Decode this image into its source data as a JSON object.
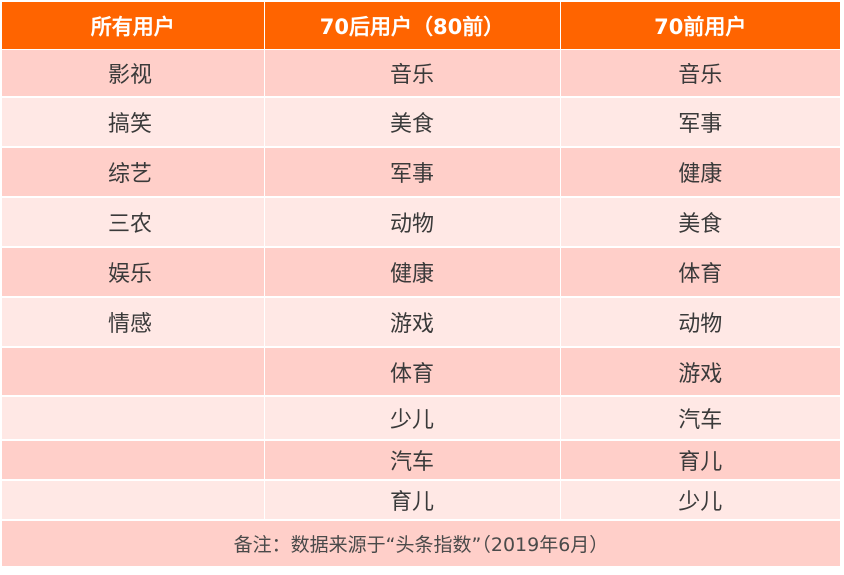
{
  "headers": [
    "所有用户",
    "70后用户（80前）",
    "70前用户"
  ],
  "rows": [
    [
      "影视",
      "音乐",
      "音乐"
    ],
    [
      "搞笑",
      "美食",
      "军事"
    ],
    [
      "综艺",
      "军事",
      "健康"
    ],
    [
      "三农",
      "动物",
      "美食"
    ],
    [
      "娱乐",
      "健康",
      "体育"
    ],
    [
      "情感",
      "游戏",
      "动物"
    ],
    [
      "",
      "体育",
      "游戏"
    ],
    [
      "",
      "少儿",
      "汽车"
    ],
    [
      "",
      "汽车",
      "育儿"
    ],
    [
      "",
      "育儿",
      "少儿"
    ]
  ],
  "footnote": "备注：数据来源于“头条指数”（2019年6月）",
  "colors": {
    "header_bg": "#ff6400",
    "row_dark": "#ffcfc9",
    "row_light": "#ffe8e5",
    "header_text": "#ffffff",
    "body_text": "#3a3a3a"
  }
}
